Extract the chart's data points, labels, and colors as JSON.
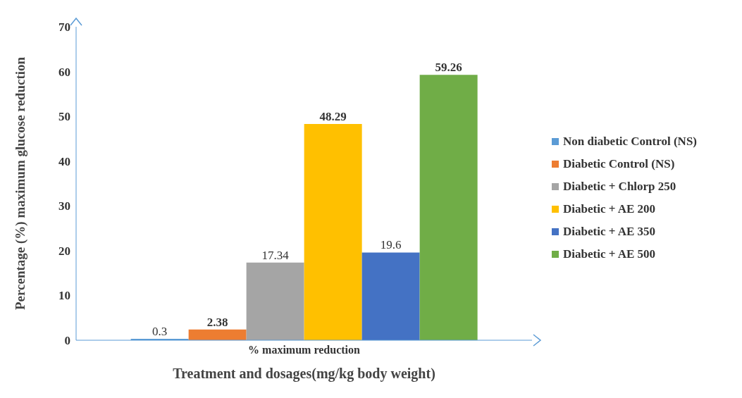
{
  "chart_data": {
    "type": "bar",
    "xlabel": "Treatment and dosages(mg/kg  body weight)",
    "ylabel": "Percentage (%) maximum glucose reduction",
    "categories": [
      "% maximum reduction"
    ],
    "series": [
      {
        "name": "Non diabetic Control (NS)",
        "color": "#5b9bd5",
        "values": [
          0.3
        ]
      },
      {
        "name": "Diabetic Control (NS)",
        "color": "#ed7d31",
        "values": [
          2.38
        ]
      },
      {
        "name": "Diabetic + Chlorp 250",
        "color": "#a5a5a5",
        "values": [
          17.34
        ]
      },
      {
        "name": "Diabetic + AE 200",
        "color": "#ffc000",
        "values": [
          48.29
        ]
      },
      {
        "name": "Diabetic + AE 350",
        "color": "#4472c4",
        "values": [
          19.6
        ]
      },
      {
        "name": "Diabetic + AE 500",
        "color": "#70ad47",
        "values": [
          59.26
        ]
      }
    ],
    "ylim": [
      0,
      70
    ],
    "yticks": [
      0,
      10,
      20,
      30,
      40,
      50,
      60,
      70
    ],
    "grid": false,
    "legend": "right",
    "data_labels": true
  }
}
